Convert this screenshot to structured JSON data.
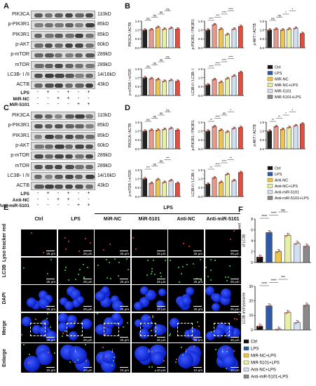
{
  "panel_labels": {
    "A": "A",
    "B": "B",
    "C": "C",
    "D": "D",
    "E": "E",
    "F": "F"
  },
  "blot_A": {
    "proteins": [
      {
        "name": "PIK3CA",
        "kda": "110kD"
      },
      {
        "name": "p-PIK3R1",
        "kda": "85kD"
      },
      {
        "name": "PIK3R1",
        "kda": "85kD"
      },
      {
        "name": "p-AKT",
        "kda": "60kD"
      },
      {
        "name": "p-mTOR",
        "kda": "289kD"
      },
      {
        "name": "mTOR",
        "kda": "289kD"
      },
      {
        "name": "LC3B- I /II",
        "kda": "14/16kD"
      },
      {
        "name": "ACTB",
        "kda": "43kD"
      }
    ],
    "conditions": [
      {
        "label": "LPS",
        "signs": [
          "-",
          "+",
          "-",
          "+",
          "-",
          "+"
        ]
      },
      {
        "label": "MiR-NC",
        "signs": [
          "-",
          "-",
          "+",
          "+",
          "-",
          "-"
        ]
      },
      {
        "label": "MiR-5101",
        "signs": [
          "-",
          "-",
          "-",
          "-",
          "+",
          "+"
        ]
      }
    ]
  },
  "blot_C": {
    "proteins": [
      {
        "name": "PIK3CA",
        "kda": "110kD"
      },
      {
        "name": "p-PIK3R1",
        "kda": "85kD"
      },
      {
        "name": "PIK3R1",
        "kda": "85kD"
      },
      {
        "name": "p-AKT",
        "kda": "60kD"
      },
      {
        "name": "p-mTOR",
        "kda": "289kD"
      },
      {
        "name": "mTOR",
        "kda": "289kD"
      },
      {
        "name": "LC3B- I /II",
        "kda": "14/16kD"
      },
      {
        "name": "ACTB",
        "kda": "43kD"
      }
    ],
    "conditions": [
      {
        "label": "LPS",
        "signs": [
          "-",
          "+",
          "-",
          "+",
          "-",
          "+"
        ]
      },
      {
        "label": "Anti-NC",
        "signs": [
          "-",
          "-",
          "+",
          "+",
          "-",
          "-"
        ]
      },
      {
        "label": "Anti-miR-5101",
        "signs": [
          "-",
          "-",
          "-",
          "-",
          "+",
          "+"
        ]
      }
    ]
  },
  "chart_data": [
    {
      "panel": "B",
      "type": "bar",
      "ylabel": "PIK3CA / ACTB",
      "ylim": [
        0,
        1.5
      ],
      "yticks": [
        "0.0",
        "0.5",
        "1.0",
        "1.5"
      ],
      "values": [
        1.0,
        1.02,
        1.15,
        1.05,
        1.1,
        1.05
      ],
      "sig": [
        "ns",
        "ns",
        "ns",
        "ns"
      ]
    },
    {
      "panel": "B",
      "type": "bar",
      "ylabel": "p-PIK3R1 / PIK3R1",
      "ylim": [
        0,
        1.5
      ],
      "yticks": [
        "0.0",
        "0.5",
        "1.0",
        "1.5"
      ],
      "values": [
        1.0,
        1.3,
        1.05,
        0.75,
        1.05,
        1.2
      ],
      "sig": [
        "****",
        "***",
        "****",
        "****"
      ]
    },
    {
      "panel": "B",
      "type": "bar",
      "ylabel": "p-AKT / ACTB",
      "ylim": [
        0,
        1.5
      ],
      "yticks": [
        "0.0",
        "0.5",
        "1.0",
        "1.5"
      ],
      "values": [
        1.0,
        1.05,
        1.0,
        1.05,
        1.1,
        0.8
      ],
      "sig": [
        "ns",
        "ns",
        "*",
        "*"
      ]
    },
    {
      "panel": "B",
      "type": "bar",
      "ylabel": "p-mTOR / mTOR",
      "ylim": [
        0,
        1.5
      ],
      "yticks": [
        "0.0",
        "0.5",
        "1.0",
        "1.5"
      ],
      "values": [
        1.0,
        0.95,
        0.9,
        0.8,
        0.85,
        0.8
      ],
      "sig": [
        "ns",
        "ns",
        "ns",
        "ns"
      ]
    },
    {
      "panel": "B",
      "type": "bar",
      "ylabel": "LC3B-II / LC3B- I",
      "ylim": [
        0,
        1.5
      ],
      "yticks": [
        "0.0",
        "0.5",
        "1.0",
        "1.5"
      ],
      "values": [
        0.6,
        0.9,
        0.75,
        0.95,
        1.1,
        1.3
      ],
      "sig": [
        "****",
        "****",
        "****",
        "****"
      ]
    },
    {
      "panel": "D",
      "type": "bar",
      "ylabel": "PIK3CA / ACTB",
      "ylim": [
        0,
        1.5
      ],
      "yticks": [
        "0.0",
        "0.5",
        "1.0",
        "1.5"
      ],
      "values": [
        1.0,
        1.05,
        1.05,
        1.1,
        1.15,
        1.05
      ],
      "sig": [
        "ns",
        "ns",
        "ns",
        "ns"
      ]
    },
    {
      "panel": "D",
      "type": "bar",
      "ylabel": "p-PIK3R1 / PIK3R1",
      "ylim": [
        0,
        1.5
      ],
      "yticks": [
        "0.0",
        "0.5",
        "1.0",
        "1.5"
      ],
      "values": [
        1.0,
        1.25,
        1.05,
        0.95,
        1.15,
        1.2
      ],
      "sig": [
        "**",
        "****",
        "ns",
        "*"
      ]
    },
    {
      "panel": "D",
      "type": "bar",
      "ylabel": "p-AKT / ACTB",
      "ylim": [
        0,
        1.5
      ],
      "yticks": [
        "0.0",
        "0.5",
        "1.0",
        "1.5"
      ],
      "values": [
        1.0,
        1.25,
        1.1,
        1.2,
        1.3,
        1.4
      ],
      "sig": [
        "**",
        "**",
        "*",
        "*"
      ]
    },
    {
      "panel": "D",
      "type": "bar",
      "ylabel": "p-mTOR / mTOR",
      "ylim": [
        0,
        1.5
      ],
      "yticks": [
        "0.0",
        "0.5",
        "1.0",
        "1.5"
      ],
      "values": [
        1.0,
        0.75,
        0.95,
        0.8,
        0.9,
        0.75
      ],
      "sig": [
        "***",
        "ns",
        "ns",
        "***"
      ]
    },
    {
      "panel": "D",
      "type": "bar",
      "ylabel": "LC3B-II / LC3B- I",
      "ylim": [
        0,
        1.5
      ],
      "yticks": [
        "0.0",
        "0.5",
        "1.0",
        "1.5"
      ],
      "values": [
        0.7,
        1.05,
        0.8,
        1.25,
        0.9,
        1.35
      ],
      "sig": [
        "**",
        "****",
        "****",
        "**"
      ]
    },
    {
      "panel": "F",
      "type": "bar",
      "ylabel": "Rel. fluorescence level of LC3B",
      "ylim": [
        0,
        8
      ],
      "yticks": [
        "0",
        "2",
        "4",
        "6",
        "8"
      ],
      "values": [
        1.0,
        5.5,
        2.0,
        5.0,
        3.5,
        3.0
      ],
      "sig": [
        "****",
        "****",
        "ns"
      ]
    },
    {
      "panel": "F",
      "type": "bar",
      "ylabel": "Rel. overlap level between LC3B and lysosome",
      "ylim": [
        0,
        30
      ],
      "yticks": [
        "0",
        "10",
        "20",
        "30"
      ],
      "values": [
        2.5,
        16.5,
        0.5,
        12.0,
        5.0,
        17.0
      ],
      "sig": [
        "****",
        "****",
        "***"
      ]
    }
  ],
  "legend_B": [
    "Ctrl",
    "LPS",
    "MiR-NC",
    "MiR-NC+LPS",
    "MiR-5101",
    "MiR-5101+LPS"
  ],
  "legend_D": [
    "Ctrl",
    "LPS",
    "Anti-NC",
    "Anti-NC+LPS",
    "Anti-miR-5101",
    "Anti-miR-5101+LPS"
  ],
  "legend_F": [
    "Ctrl",
    "LPS",
    "MiR-NC+LPS",
    "MiR-5101+LPS",
    "Anti-NC+LPS",
    "Anti-miR-5101+LPS"
  ],
  "colors_BD": [
    "#111111",
    "#2f58a5",
    "#f0c64a",
    "#e8f0a8",
    "#cfe0f2",
    "#888888"
  ],
  "colors_B_bars": [
    "#222222",
    "#e89a8c",
    "#f0c64a",
    "#e8f0a8",
    "#cfe0f2",
    "#e74c3c"
  ],
  "colors_F": [
    "#111111",
    "#2f58a5",
    "#f0c64a",
    "#e8f0a8",
    "#cfe0f2",
    "#8a8a8a"
  ],
  "micro": {
    "group_label": "LPS",
    "columns": [
      "Ctrl",
      "LPS",
      "MiR-NC",
      "MiR-5101",
      "Anti-NC",
      "Anti-miR-5101"
    ],
    "rows": [
      "Lyso tracker red",
      "LC3B",
      "DAPI",
      "Merge",
      "Enlarge"
    ],
    "scale_small": "25 μm",
    "scale_enlarge": "10 μm"
  }
}
